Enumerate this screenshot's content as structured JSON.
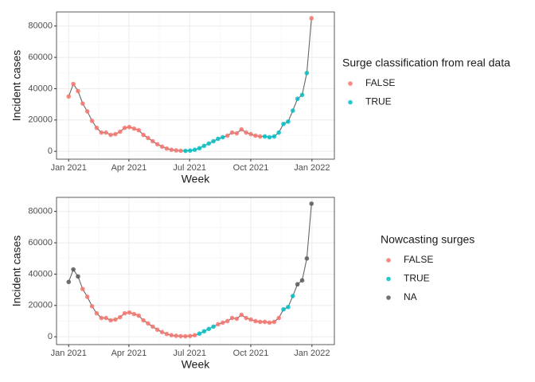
{
  "chart_data": [
    {
      "type": "line",
      "x_label": "Week",
      "y_label": "Incident cases",
      "x": [
        0,
        1,
        2,
        3,
        4,
        5,
        6,
        7,
        8,
        9,
        10,
        11,
        12,
        13,
        14,
        15,
        16,
        17,
        18,
        19,
        20,
        21,
        22,
        23,
        24,
        25,
        26,
        27,
        28,
        29,
        30,
        31,
        32,
        33,
        34,
        35,
        36,
        37,
        38,
        39,
        40,
        41,
        42,
        43,
        44,
        45,
        46,
        47,
        48,
        49,
        50,
        51,
        52
      ],
      "values": [
        35000,
        43000,
        38500,
        30500,
        25500,
        19500,
        15000,
        12000,
        12000,
        10500,
        11000,
        12500,
        15000,
        15500,
        14500,
        13500,
        10500,
        8500,
        6500,
        4500,
        3000,
        1800,
        1000,
        600,
        400,
        300,
        500,
        1000,
        2000,
        3500,
        5000,
        6500,
        8000,
        9000,
        10000,
        12000,
        11500,
        14000,
        12000,
        11000,
        10000,
        9500,
        9500,
        9000,
        9500,
        12000,
        17500,
        19000,
        26000,
        33500,
        36000,
        50000,
        85000
      ],
      "point_classes": [
        "FALSE",
        "FALSE",
        "FALSE",
        "FALSE",
        "FALSE",
        "FALSE",
        "FALSE",
        "FALSE",
        "FALSE",
        "FALSE",
        "FALSE",
        "FALSE",
        "FALSE",
        "FALSE",
        "FALSE",
        "FALSE",
        "FALSE",
        "FALSE",
        "FALSE",
        "FALSE",
        "FALSE",
        "FALSE",
        "FALSE",
        "FALSE",
        "FALSE",
        "TRUE",
        "TRUE",
        "TRUE",
        "TRUE",
        "TRUE",
        "TRUE",
        "TRUE",
        "TRUE",
        "TRUE",
        "FALSE",
        "FALSE",
        "FALSE",
        "FALSE",
        "FALSE",
        "FALSE",
        "FALSE",
        "FALSE",
        "TRUE",
        "TRUE",
        "TRUE",
        "TRUE",
        "TRUE",
        "TRUE",
        "TRUE",
        "TRUE",
        "TRUE",
        "TRUE",
        "FALSE"
      ],
      "line_color": "#666666",
      "legend": {
        "title": "Surge classification from real data",
        "entries": [
          {
            "label": "FALSE",
            "color": "#F8766D"
          },
          {
            "label": "TRUE",
            "color": "#00BFC4"
          }
        ]
      },
      "xlim": [
        -2.6,
        56.9
      ],
      "ylim": [
        -5000,
        89000
      ],
      "xticks": [
        {
          "value": 0,
          "label": "Jan 2021"
        },
        {
          "value": 12.9,
          "label": "Apr 2021"
        },
        {
          "value": 25.9,
          "label": "Jul 2021"
        },
        {
          "value": 39,
          "label": "Oct 2021"
        },
        {
          "value": 52.1,
          "label": "Jan 2022"
        }
      ],
      "yticks": [
        0,
        20000,
        40000,
        60000,
        80000
      ],
      "grid": true
    },
    {
      "type": "line",
      "x_label": "Week",
      "y_label": "Incident cases",
      "x": [
        0,
        1,
        2,
        3,
        4,
        5,
        6,
        7,
        8,
        9,
        10,
        11,
        12,
        13,
        14,
        15,
        16,
        17,
        18,
        19,
        20,
        21,
        22,
        23,
        24,
        25,
        26,
        27,
        28,
        29,
        30,
        31,
        32,
        33,
        34,
        35,
        36,
        37,
        38,
        39,
        40,
        41,
        42,
        43,
        44,
        45,
        46,
        47,
        48,
        49,
        50,
        51,
        52
      ],
      "values": [
        35000,
        43000,
        38500,
        30500,
        25500,
        19500,
        15000,
        12000,
        12000,
        10500,
        11000,
        12500,
        15000,
        15500,
        14500,
        13500,
        10500,
        8500,
        6500,
        4500,
        3000,
        1800,
        1000,
        600,
        400,
        300,
        500,
        1000,
        2000,
        3500,
        5000,
        6500,
        8000,
        9000,
        10000,
        12000,
        11500,
        14000,
        12000,
        11000,
        10000,
        9500,
        9500,
        9000,
        9500,
        12000,
        17500,
        19000,
        26000,
        33500,
        36000,
        50000,
        85000
      ],
      "point_classes": [
        "NA",
        "NA",
        "NA",
        "FALSE",
        "FALSE",
        "FALSE",
        "FALSE",
        "FALSE",
        "FALSE",
        "FALSE",
        "FALSE",
        "FALSE",
        "FALSE",
        "FALSE",
        "FALSE",
        "FALSE",
        "FALSE",
        "FALSE",
        "FALSE",
        "FALSE",
        "FALSE",
        "FALSE",
        "FALSE",
        "FALSE",
        "FALSE",
        "FALSE",
        "FALSE",
        "FALSE",
        "TRUE",
        "TRUE",
        "TRUE",
        "TRUE",
        "FALSE",
        "FALSE",
        "FALSE",
        "FALSE",
        "FALSE",
        "FALSE",
        "FALSE",
        "FALSE",
        "FALSE",
        "FALSE",
        "FALSE",
        "FALSE",
        "FALSE",
        "FALSE",
        "TRUE",
        "TRUE",
        "TRUE",
        "NA",
        "NA",
        "NA",
        "NA"
      ],
      "line_color": "#666666",
      "legend": {
        "title": "Nowcasting surges",
        "entries": [
          {
            "label": "FALSE",
            "color": "#F8766D"
          },
          {
            "label": "TRUE",
            "color": "#00BFC4"
          },
          {
            "label": "NA",
            "color": "#595959"
          }
        ]
      },
      "xlim": [
        -2.6,
        56.9
      ],
      "ylim": [
        -5000,
        89000
      ],
      "xticks": [
        {
          "value": 0,
          "label": "Jan 2021"
        },
        {
          "value": 12.9,
          "label": "Apr 2021"
        },
        {
          "value": 25.9,
          "label": "Jul 2021"
        },
        {
          "value": 39,
          "label": "Oct 2021"
        },
        {
          "value": 52.1,
          "label": "Jan 2022"
        }
      ],
      "yticks": [
        0,
        20000,
        40000,
        60000,
        80000
      ],
      "grid": true
    }
  ]
}
